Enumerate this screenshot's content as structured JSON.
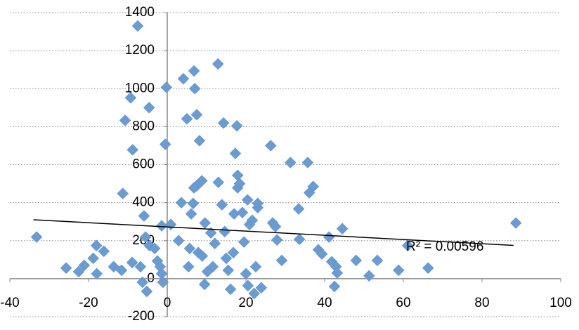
{
  "chart_data": {
    "type": "scatter",
    "x": [
      -33.2,
      -25.7,
      -22.5,
      -21.1,
      -18.8,
      -18.0,
      -17.9,
      -16.1,
      -13.6,
      -11.6,
      -11.3,
      -10.7,
      -9.3,
      -8.8,
      -7.5,
      -8.9,
      -6.8,
      -5.9,
      -5.5,
      -4.6,
      -5.2,
      -6.3,
      -4.5,
      -3.2,
      -2.5,
      -1.8,
      -1.4,
      -1.1,
      -0.5,
      -0.2,
      0.9,
      -1.4,
      2.9,
      3.6,
      4.1,
      5.0,
      5.4,
      6.1,
      6.6,
      6.8,
      7.0,
      7.5,
      8.2,
      7.5,
      6.8,
      8.8,
      5.7,
      7.9,
      8.9,
      9.6,
      10.2,
      9.5,
      11.1,
      12.1,
      11.6,
      12.9,
      13.0,
      13.9,
      14.3,
      14.6,
      15.0,
      15.5,
      16.1,
      16.8,
      17.0,
      17.3,
      17.7,
      17.9,
      17.9,
      18.4,
      19.1,
      19.5,
      20.0,
      20.5,
      20.4,
      20.9,
      21.6,
      22.5,
      23.0,
      23.0,
      22.1,
      23.9,
      26.3,
      26.8,
      27.5,
      27.9,
      29.1,
      31.3,
      33.4,
      33.6,
      35.7,
      36.1,
      37.1,
      38.4,
      39.3,
      41.1,
      41.8,
      42.5,
      42.9,
      43.2,
      44.5,
      48.0,
      51.3,
      53.4,
      58.8,
      61.1,
      66.3,
      88.6
    ],
    "values": [
      219,
      56,
      37,
      70,
      107,
      174,
      26,
      144,
      63,
      44,
      448,
      833,
      952,
      678,
      1330,
      85,
      63,
      330,
      219,
      900,
      -67,
      -19,
      174,
      159,
      93,
      63,
      26,
      -19,
      707,
      1007,
      285,
      278,
      200,
      400,
      1052,
      841,
      63,
      341,
      396,
      1093,
      1000,
      863,
      726,
      489,
      478,
      515,
      159,
      137,
      119,
      293,
      37,
      -30,
      241,
      185,
      63,
      1130,
      507,
      389,
      819,
      248,
      107,
      44,
      -56,
      137,
      341,
      659,
      804,
      544,
      478,
      500,
      348,
      193,
      26,
      -37,
      415,
      285,
      307,
      63,
      374,
      396,
      -78,
      -48,
      700,
      293,
      274,
      204,
      96,
      611,
      367,
      207,
      611,
      452,
      485,
      152,
      130,
      219,
      89,
      -41,
      63,
      30,
      263,
      96,
      15,
      96,
      44,
      174,
      56,
      293
    ],
    "color": "#6a9bd1",
    "trendline": {
      "x": [
        -34,
        88
      ],
      "y": [
        310,
        175
      ]
    },
    "annotation": "R² = 0.00596",
    "xlim": [
      -40,
      100
    ],
    "xticks": [
      -40,
      -20,
      0,
      20,
      40,
      60,
      80,
      100
    ],
    "ylim": [
      -200,
      1400
    ],
    "yticks": [
      -200,
      0,
      200,
      400,
      600,
      800,
      1000,
      1200,
      1400
    ],
    "grid": true
  }
}
